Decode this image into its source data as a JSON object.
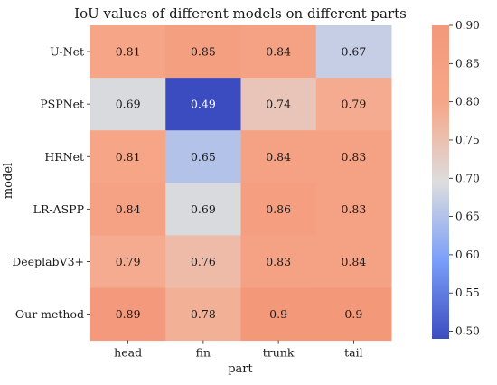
{
  "chart_data": {
    "type": "heatmap",
    "title": "IoU values of different models on different parts",
    "xlabel": "part",
    "ylabel": "model",
    "x_categories": [
      "head",
      "fin",
      "trunk",
      "tail"
    ],
    "y_categories": [
      "U-Net",
      "PSPNet",
      "HRNet",
      "LR-ASPP",
      "DeeplabV3+",
      "Our method"
    ],
    "values": [
      [
        0.81,
        0.85,
        0.84,
        0.67
      ],
      [
        0.69,
        0.49,
        0.74,
        0.79
      ],
      [
        0.81,
        0.65,
        0.84,
        0.83
      ],
      [
        0.84,
        0.69,
        0.86,
        0.83
      ],
      [
        0.79,
        0.76,
        0.83,
        0.84
      ],
      [
        0.89,
        0.78,
        0.9,
        0.9
      ]
    ],
    "cell_labels": [
      [
        "0.81",
        "0.85",
        "0.84",
        "0.67"
      ],
      [
        "0.69",
        "0.49",
        "0.74",
        "0.79"
      ],
      [
        "0.81",
        "0.65",
        "0.84",
        "0.83"
      ],
      [
        "0.84",
        "0.69",
        "0.86",
        "0.83"
      ],
      [
        "0.79",
        "0.76",
        "0.83",
        "0.84"
      ],
      [
        "0.89",
        "0.78",
        "0.9",
        "0.9"
      ]
    ],
    "colormap": "coolwarm",
    "colorbar_range": [
      0.49,
      0.9
    ],
    "colorbar_ticks": [
      "0.50",
      "0.55",
      "0.60",
      "0.65",
      "0.70",
      "0.75",
      "0.80",
      "0.85",
      "0.90"
    ],
    "colorbar_tick_values": [
      0.5,
      0.55,
      0.6,
      0.65,
      0.7,
      0.75,
      0.8,
      0.85,
      0.9
    ],
    "colors": {
      "low": "#3b4cc0",
      "mid": "#dddddd",
      "high": "#f4987a",
      "text": "#1a1a1a",
      "text_on_dark": "#ffffff"
    }
  }
}
